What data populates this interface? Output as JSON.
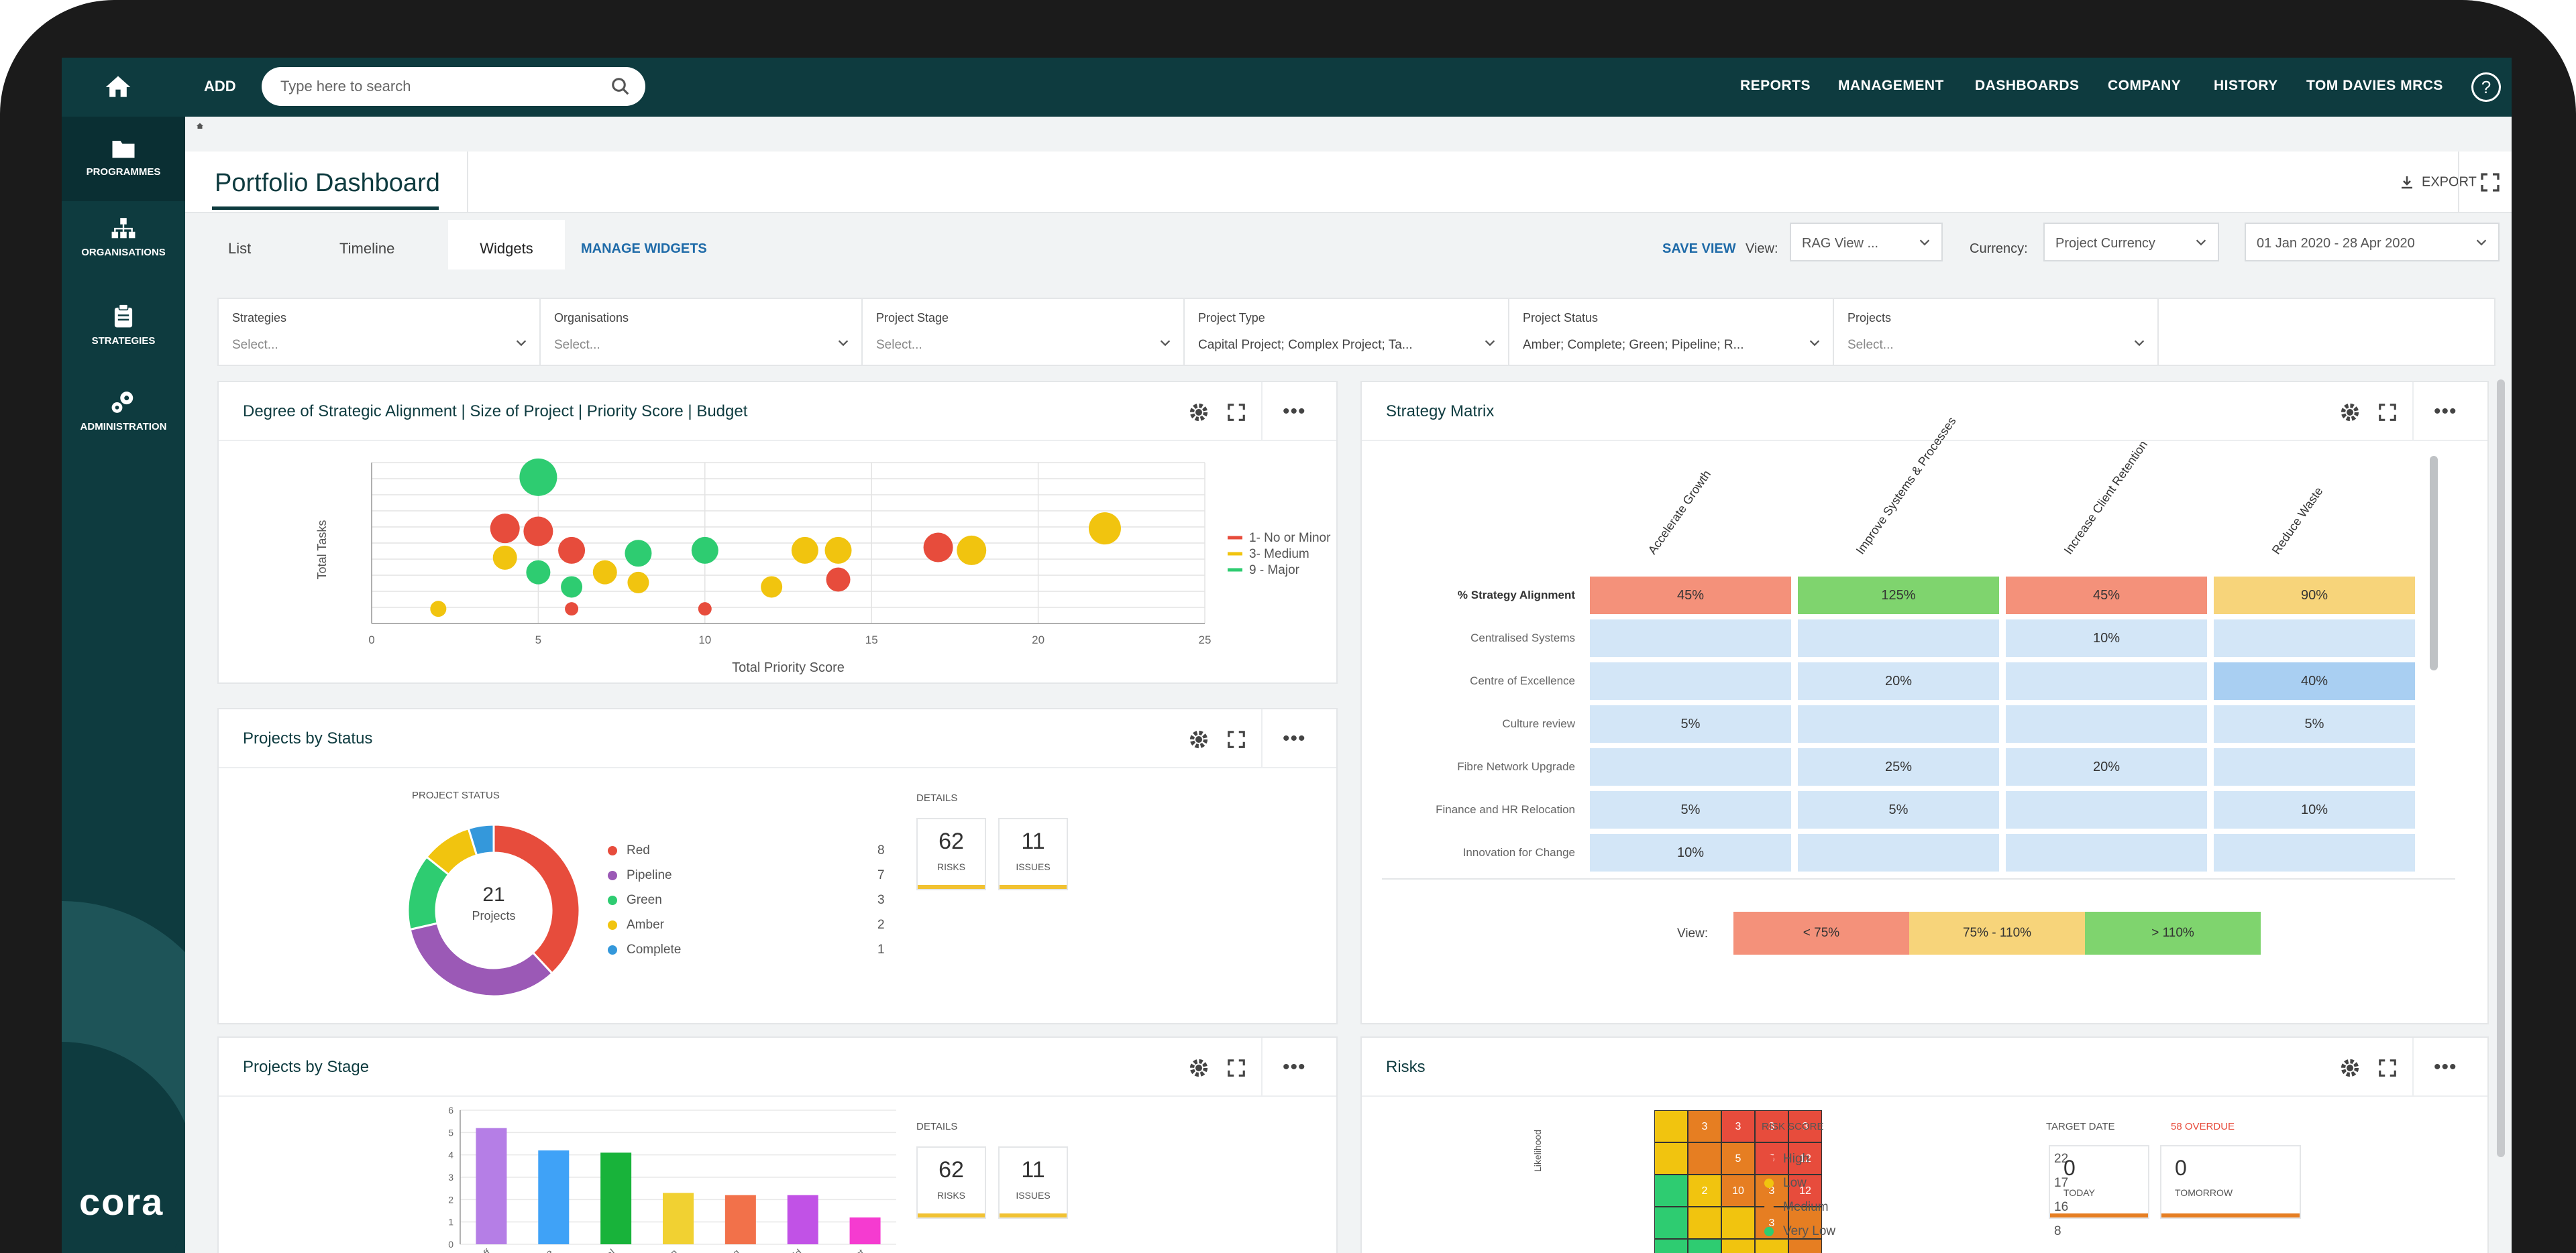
{
  "topbar": {
    "add": "ADD",
    "search_placeholder": "Type here to search",
    "nav": [
      "REPORTS",
      "MANAGEMENT",
      "DASHBOARDS",
      "COMPANY",
      "HISTORY",
      "TOM DAVIES MRCS"
    ],
    "help": "?"
  },
  "sidebar": {
    "items": [
      {
        "label": "PROGRAMMES",
        "icon": "folder-icon"
      },
      {
        "label": "ORGANISATIONS",
        "icon": "org-icon"
      },
      {
        "label": "STRATEGIES",
        "icon": "clipboard-icon"
      },
      {
        "label": "ADMINISTRATION",
        "icon": "cogs-icon"
      }
    ],
    "logo": "cora"
  },
  "page": {
    "title": "Portfolio Dashboard",
    "export": "EXPORT"
  },
  "tabs": {
    "items": [
      "List",
      "Timeline",
      "Widgets"
    ],
    "manage": "MANAGE WIDGETS",
    "save_view": "SAVE VIEW",
    "view_label": "View:",
    "view_value": "RAG View ...",
    "currency_label": "Currency:",
    "currency_value": "Project Currency",
    "date_range": "01 Jan 2020 - 28 Apr 2020"
  },
  "filters": [
    {
      "label": "Strategies",
      "value": "Select..."
    },
    {
      "label": "Organisations",
      "value": "Select..."
    },
    {
      "label": "Project Stage",
      "value": "Select..."
    },
    {
      "label": "Project Type",
      "value": "Capital Project; Complex Project; Ta..."
    },
    {
      "label": "Project Status",
      "value": "Amber; Complete; Green; Pipeline; R..."
    },
    {
      "label": "Projects",
      "value": "Select..."
    }
  ],
  "bubble_panel": {
    "title": "Degree of Strategic Alignment | Size of Project | Priority Score | Budget"
  },
  "status_panel": {
    "title": "Projects by Status",
    "chart_label": "PROJECT STATUS",
    "center_num": "21",
    "center_label": "Projects",
    "details": "DETAILS",
    "risks_num": "62",
    "risks_label": "RISKS",
    "issues_num": "11",
    "issues_label": "ISSUES",
    "legend": [
      {
        "name": "Red",
        "count": "8",
        "color": "#e74c3c"
      },
      {
        "name": "Pipeline",
        "count": "7",
        "color": "#9b59b6"
      },
      {
        "name": "Green",
        "count": "3",
        "color": "#2ecc71"
      },
      {
        "name": "Amber",
        "count": "2",
        "color": "#f1c40f"
      },
      {
        "name": "Complete",
        "count": "1",
        "color": "#3498db"
      }
    ]
  },
  "matrix_panel": {
    "title": "Strategy Matrix",
    "columns": [
      "Accelerate Growth",
      "Improve Systems & Processes",
      "Increase Client Retention",
      "Reduce Waste"
    ],
    "rows": [
      {
        "label": "% Strategy Alignment",
        "cells": [
          "45%",
          "125%",
          "45%",
          "90%"
        ]
      },
      {
        "label": "Centralised Systems",
        "cells": [
          "",
          "",
          "10%",
          ""
        ]
      },
      {
        "label": "Centre of Excellence",
        "cells": [
          "",
          "20%",
          "",
          "40%"
        ]
      },
      {
        "label": "Culture review",
        "cells": [
          "5%",
          "",
          "",
          "5%"
        ]
      },
      {
        "label": "Fibre Network Upgrade",
        "cells": [
          "",
          "25%",
          "20%",
          ""
        ]
      },
      {
        "label": "Finance and HR Relocation",
        "cells": [
          "5%",
          "5%",
          "",
          "10%"
        ]
      },
      {
        "label": "Innovation for Change",
        "cells": [
          "10%",
          "",
          "",
          ""
        ]
      }
    ],
    "view_label": "View:",
    "view_items": [
      "< 75%",
      "75% - 110%",
      "> 110%"
    ],
    "colors": {
      "red": "#f4917a",
      "green": "#7fd46e",
      "amber": "#f7d47a",
      "blue": "#d3e6f7",
      "blue2": "#a9cff2"
    }
  },
  "stage_panel": {
    "title": "Projects by Stage",
    "details": "DETAILS",
    "risks_num": "62",
    "risks_label": "RISKS",
    "issues_num": "11",
    "issues_label": "ISSUES"
  },
  "risks_panel": {
    "title": "Risks",
    "risk_score": "RISK SCORE",
    "target_date": "TARGET DATE",
    "overdue": "58 OVERDUE",
    "likelihood": "Likelihood",
    "legend": [
      {
        "name": "High",
        "count": "22",
        "color": "#e74c3c"
      },
      {
        "name": "Low",
        "count": "17",
        "color": "#f1c40f"
      },
      {
        "name": "Medium",
        "count": "16",
        "color": "#e67e22"
      },
      {
        "name": "Very Low",
        "count": "8",
        "color": "#2ecc71"
      }
    ],
    "today_num": "0",
    "today_label": "TODAY",
    "tomorrow_num": "0",
    "tomorrow_label": "TOMORROW",
    "grid": [
      [
        "",
        "3",
        "3",
        "3",
        "3"
      ],
      [
        "",
        "",
        "5",
        "5",
        "12"
      ],
      [
        "",
        "2",
        "10",
        "3",
        "12"
      ],
      [
        "",
        "",
        "",
        "3",
        ""
      ],
      [
        "",
        "",
        "",
        "",
        ""
      ]
    ]
  },
  "chart_data": [
    {
      "type": "scatter",
      "title": "Degree of Strategic Alignment | Size of Project | Priority Score | Budget",
      "xlabel": "Total Priority Score",
      "ylabel": "Total Tasks",
      "xlim": [
        0,
        25
      ],
      "x_ticks": [
        "0",
        "5",
        "10",
        "15",
        "20",
        "25"
      ],
      "series": [
        {
          "name": "1- No or Minor",
          "color": "#e74c3c",
          "points": [
            [
              4,
              6.5,
              22
            ],
            [
              5,
              6.3,
              22
            ],
            [
              6,
              5,
              20
            ],
            [
              6,
              1,
              10
            ],
            [
              10,
              1,
              10
            ],
            [
              17,
              5.2,
              22
            ],
            [
              14,
              3,
              18
            ]
          ]
        },
        {
          "name": "3- Medium",
          "color": "#f1c40f",
          "points": [
            [
              2,
              1,
              12
            ],
            [
              4,
              4.5,
              18
            ],
            [
              7,
              3.5,
              18
            ],
            [
              8,
              2.8,
              16
            ],
            [
              12,
              2.5,
              16
            ],
            [
              13,
              5,
              20
            ],
            [
              14,
              5,
              20
            ],
            [
              18,
              5,
              22
            ],
            [
              22,
              6.5,
              24
            ]
          ]
        },
        {
          "name": "9 - Major",
          "color": "#2ecc71",
          "points": [
            [
              5,
              10,
              28
            ],
            [
              5,
              3.5,
              18
            ],
            [
              6,
              2.5,
              16
            ],
            [
              8,
              4.8,
              20
            ],
            [
              10,
              5,
              20
            ]
          ]
        }
      ]
    },
    {
      "type": "pie",
      "title": "PROJECT STATUS",
      "categories": [
        "Red",
        "Pipeline",
        "Green",
        "Amber",
        "Complete"
      ],
      "values": [
        8,
        7,
        3,
        2,
        1
      ]
    },
    {
      "type": "bar",
      "title": "Projects by Stage",
      "categories": [
        "Kick Off",
        "Initiate",
        "Approval",
        "Design",
        "Planning",
        "Build",
        "Test"
      ],
      "values": [
        5.2,
        4.2,
        4.1,
        2.3,
        2.2,
        2.2,
        1.2
      ],
      "colors": [
        "#b57ee6",
        "#3fa2f7",
        "#18b33a",
        "#f1d132",
        "#f2714a",
        "#c152e6",
        "#f53bd0"
      ],
      "ylim": [
        0,
        6
      ]
    }
  ]
}
